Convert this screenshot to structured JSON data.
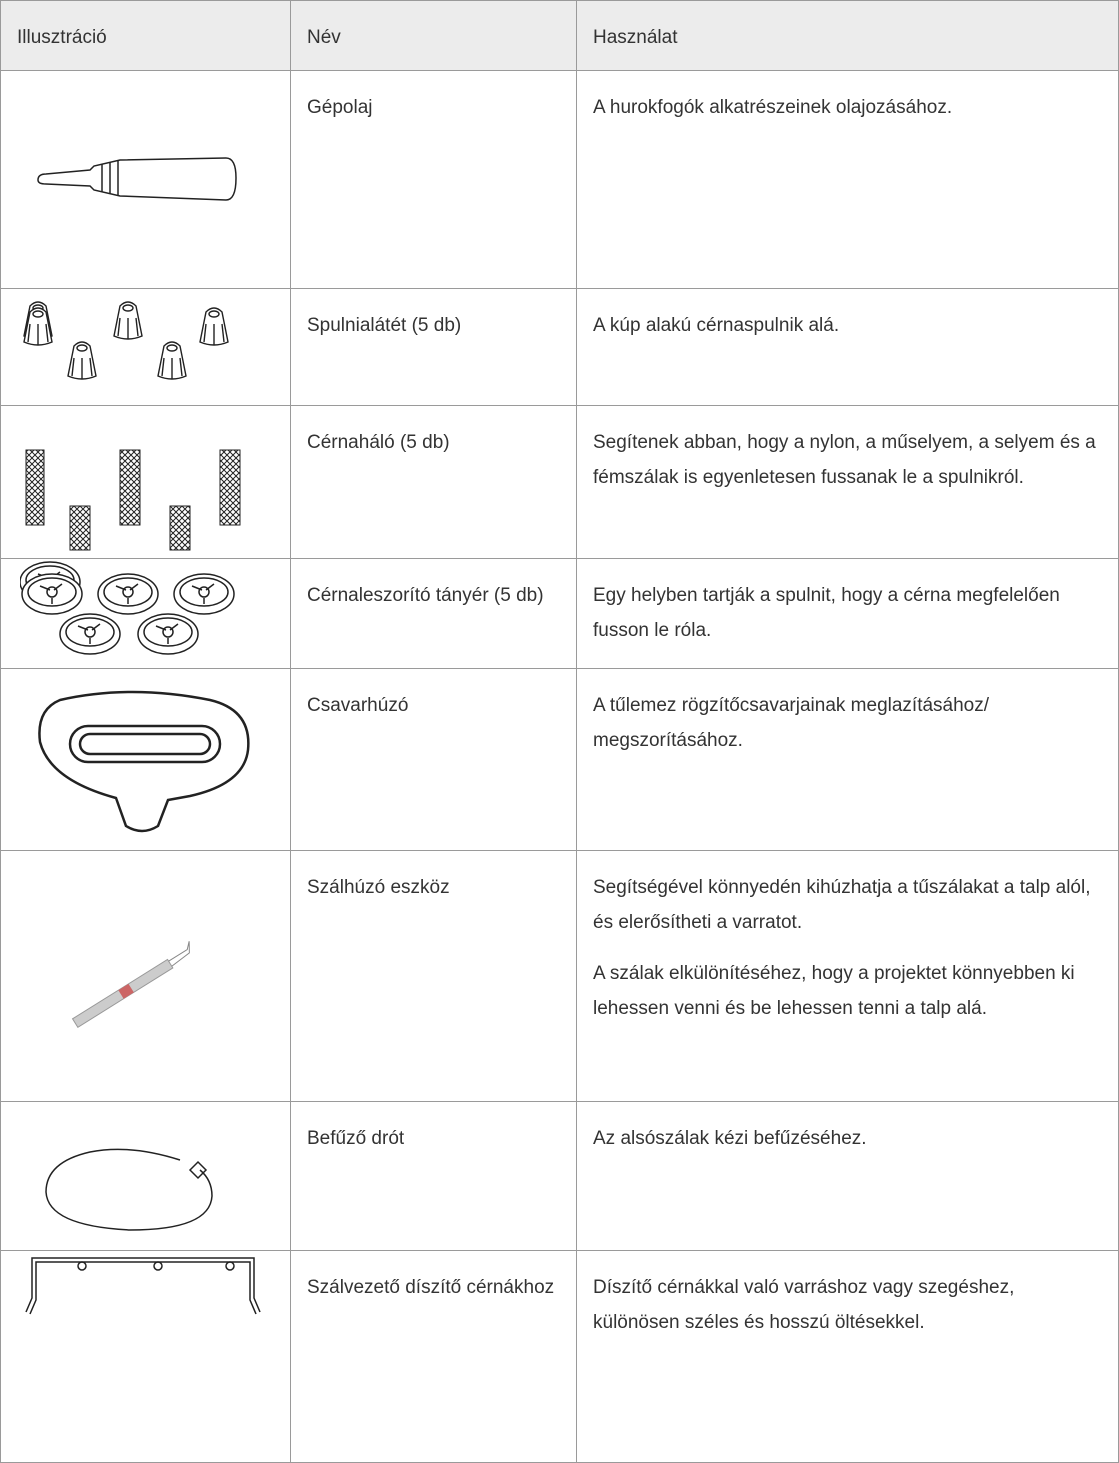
{
  "table": {
    "header": [
      "Illusztráció",
      "Név",
      "Használat"
    ],
    "rows": [
      {
        "name": "Gépolaj",
        "usage": [
          "A hurokfogók alkatrészeinek olajozásához."
        ]
      },
      {
        "name": "Spulnialátét (5 db)",
        "usage": [
          "A kúp alakú cérnaspulnik alá."
        ]
      },
      {
        "name": "Cérnaháló (5 db)",
        "usage": [
          "Segítenek abban, hogy a nylon, a műselyem, a selyem és a fémszálak is egyenletesen fussanak le a spulnikról."
        ]
      },
      {
        "name": "Cérnaleszorító tányér (5 db)",
        "usage": [
          "Egy helyben tartják a spulnit, hogy a cérna megfelelően fusson le róla."
        ]
      },
      {
        "name": "Csavarhúzó",
        "usage": [
          "A tűlemez rögzítőcsavarjainak meglazításához/ megszorításához."
        ]
      },
      {
        "name": "Szálhúzó eszköz",
        "usage": [
          "Segítségével könnyedén kihúzhatja a tűszálakat a talp alól, és elerősítheti a varratot.",
          "A szálak elkülönítéséhez, hogy a projektet könnyebben ki lehessen venni és be lehessen tenni a talp alá."
        ]
      },
      {
        "name": "Befűző drót",
        "usage": [
          "Az alsószálak kézi befűzéséhez."
        ]
      },
      {
        "name": "Szálvezető díszítő cérnákhoz",
        "usage": [
          "Díszítő cérnákkal való varráshoz vagy szegéshez, különösen széles és hosszú öltésekkel."
        ]
      }
    ]
  }
}
